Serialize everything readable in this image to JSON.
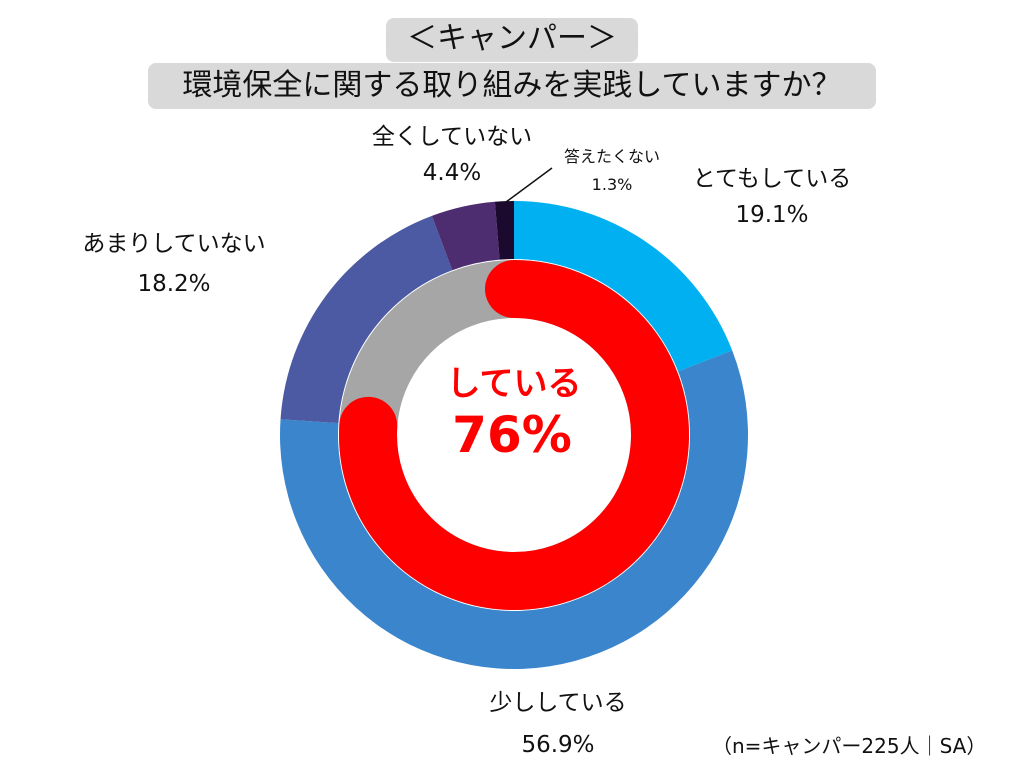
{
  "chart_data": {
    "type": "pie",
    "title_line1": "＜キャンパー＞",
    "title_line2": "環境保全に関する取り組みを実践していますか？",
    "outer_ring": {
      "slices": [
        {
          "label": "とてもしている",
          "value": 19.1,
          "value_label": "19.1%",
          "color": "#00b0f0"
        },
        {
          "label": "少ししている",
          "value": 56.9,
          "value_label": "56.9%",
          "color": "#3a85cc"
        },
        {
          "label": "あまりしていない",
          "value": 18.2,
          "value_label": "18.2%",
          "color": "#4b5aa3"
        },
        {
          "label": "全くしていない",
          "value": 4.4,
          "value_label": "4.4%",
          "color": "#4d2d70"
        },
        {
          "label": "答えたくない",
          "value": 1.3,
          "value_label": "1.3%",
          "color": "#1c0a2e"
        }
      ]
    },
    "inner_ring": {
      "label": "している",
      "value": 76,
      "value_label": "76%",
      "color": "#ff0000",
      "track_color": "#a6a6a6"
    },
    "note": "（n=キャンパー225人｜SA）"
  }
}
